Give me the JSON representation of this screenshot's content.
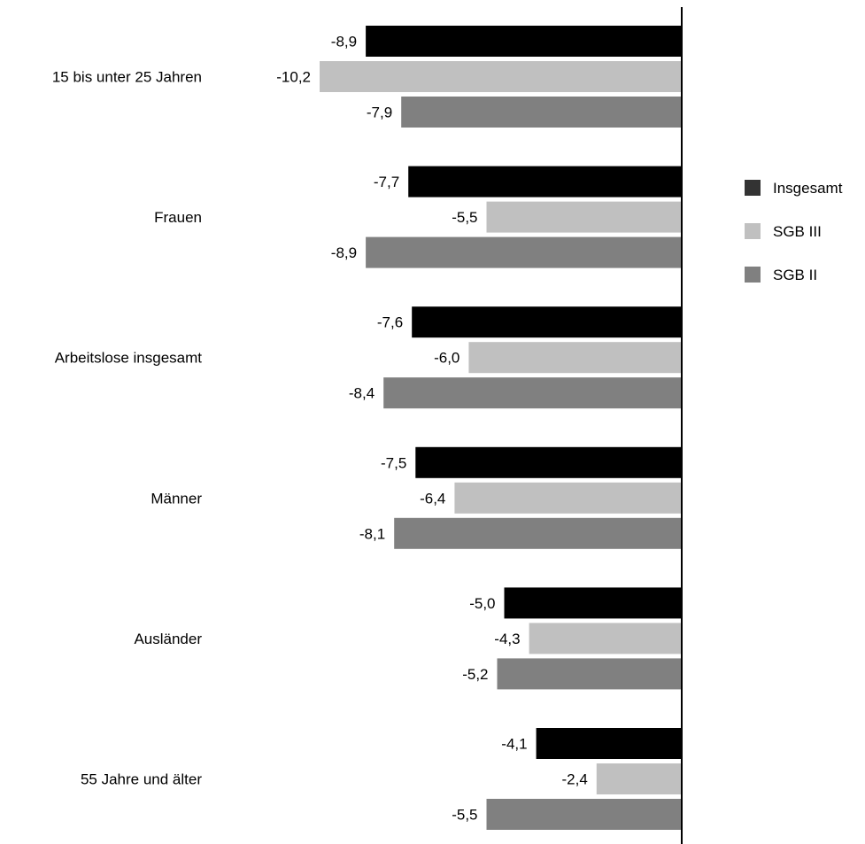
{
  "chart_data": {
    "type": "bar",
    "orientation": "horizontal",
    "categories": [
      "15 bis unter 25 Jahren",
      "Frauen",
      "Arbeitslose insgesamt",
      "Männer",
      "Ausländer",
      "55 Jahre und älter"
    ],
    "series": [
      {
        "name": "Insgesamt",
        "color": "#000000",
        "values": [
          -8.9,
          -7.7,
          -7.6,
          -7.5,
          -5.0,
          -4.1
        ],
        "labels": [
          "-8,9",
          "-7,7",
          "-7,6",
          "-7,5",
          "-5,0",
          "-4,1"
        ]
      },
      {
        "name": "SGB III",
        "color": "#c0c0c0",
        "values": [
          -10.2,
          -5.5,
          -6.0,
          -6.4,
          -4.3,
          -2.4
        ],
        "labels": [
          "-10,2",
          "-5,5",
          "-6,0",
          "-6,4",
          "-4,3",
          "-2,4"
        ]
      },
      {
        "name": "SGB II",
        "color": "#808080",
        "values": [
          -7.9,
          -8.9,
          -8.4,
          -8.1,
          -5.2,
          -5.5
        ],
        "labels": [
          "-7,9",
          "-8,9",
          "-8,4",
          "-8,1",
          "-5,2",
          "-5,5"
        ]
      }
    ],
    "xlim": [
      -10.2,
      0
    ],
    "legend": {
      "position": "right",
      "entries": [
        "Insgesamt",
        "SGB III",
        "SGB II"
      ],
      "swatch_colors": [
        "#333333",
        "#c0c0c0",
        "#808080"
      ]
    },
    "grid": false
  }
}
